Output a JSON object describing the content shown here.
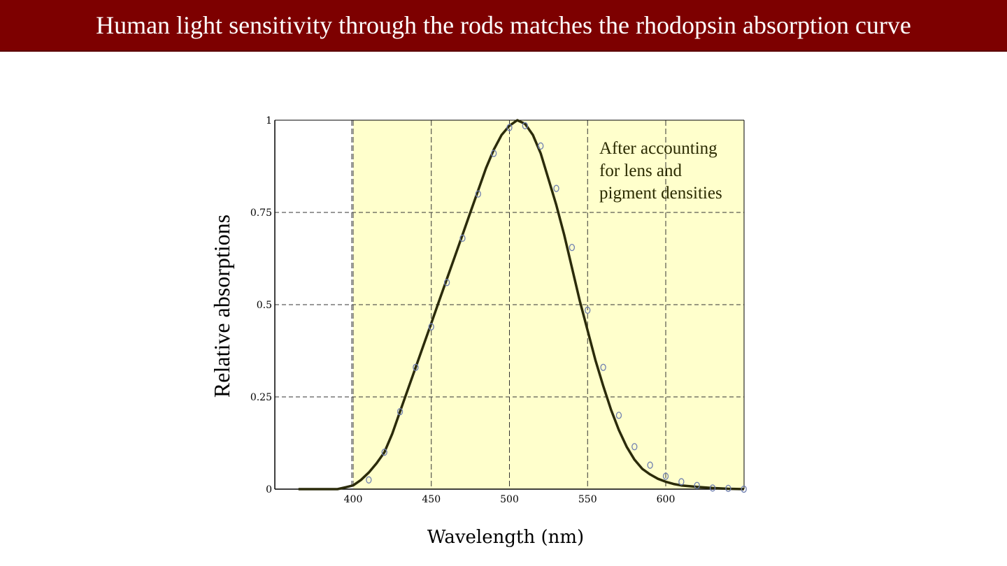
{
  "slide": {
    "title": "Human light sensitivity through the rods matches the rhodopsin absorption curve"
  },
  "colors": {
    "title_bar": "#7d0000",
    "plot_fill": "#ffffcc",
    "curve": "#2b2b0a",
    "markers": "#6f7fb0",
    "grid": "#333333"
  },
  "chart_data": {
    "type": "line",
    "xlabel": "Wavelength (nm)",
    "ylabel": "Relative absorptions",
    "xlim": [
      360,
      650
    ],
    "ylim": [
      0,
      1
    ],
    "xticks": [
      400,
      450,
      500,
      550,
      600
    ],
    "xtick_labels": [
      "400",
      "450",
      "500",
      "550",
      "600"
    ],
    "yticks": [
      0,
      0.25,
      0.5,
      0.75,
      1
    ],
    "ytick_labels": [
      "0",
      "0.25",
      "0.5",
      "0.75",
      "1"
    ],
    "grid": true,
    "shaded_region": [
      400,
      650
    ],
    "annotation": [
      "After accounting",
      "for lens and",
      "pigment densities"
    ],
    "series": [
      {
        "kind": "line",
        "x": [
          365,
          380,
          390,
          395,
          400,
          405,
          410,
          415,
          420,
          425,
          430,
          435,
          440,
          445,
          450,
          455,
          460,
          465,
          470,
          475,
          480,
          485,
          490,
          495,
          500,
          505,
          510,
          515,
          520,
          525,
          530,
          535,
          540,
          545,
          550,
          555,
          560,
          565,
          570,
          575,
          580,
          585,
          590,
          595,
          600,
          605,
          610,
          620,
          630,
          640,
          650
        ],
        "y": [
          0,
          0,
          0,
          0.005,
          0.01,
          0.025,
          0.045,
          0.07,
          0.1,
          0.15,
          0.21,
          0.27,
          0.33,
          0.39,
          0.45,
          0.51,
          0.57,
          0.63,
          0.69,
          0.75,
          0.81,
          0.87,
          0.92,
          0.96,
          0.985,
          1.0,
          0.99,
          0.96,
          0.91,
          0.84,
          0.77,
          0.69,
          0.6,
          0.51,
          0.43,
          0.35,
          0.28,
          0.215,
          0.16,
          0.115,
          0.08,
          0.055,
          0.04,
          0.028,
          0.02,
          0.014,
          0.01,
          0.006,
          0.003,
          0.001,
          0
        ]
      },
      {
        "kind": "scatter",
        "x": [
          410,
          420,
          430,
          440,
          450,
          460,
          470,
          480,
          490,
          500,
          510,
          520,
          530,
          540,
          550,
          560,
          570,
          580,
          590,
          600,
          610,
          620,
          630,
          640,
          650
        ],
        "y": [
          0.025,
          0.1,
          0.21,
          0.33,
          0.44,
          0.56,
          0.68,
          0.8,
          0.91,
          0.98,
          0.985,
          0.93,
          0.815,
          0.655,
          0.485,
          0.33,
          0.2,
          0.115,
          0.065,
          0.035,
          0.02,
          0.01,
          0.003,
          0.002,
          0
        ]
      }
    ]
  }
}
